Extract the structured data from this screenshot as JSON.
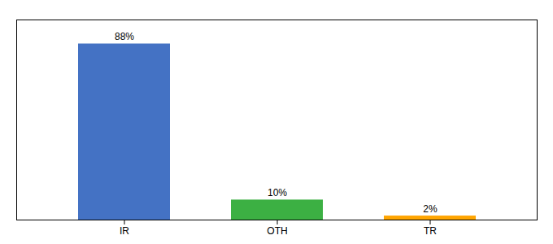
{
  "chart_data": {
    "type": "bar",
    "categories": [
      "IR",
      "OTH",
      "TR"
    ],
    "values": [
      88,
      10,
      2
    ],
    "value_labels": [
      "88%",
      "10%",
      "2%"
    ],
    "colors": [
      "#4472C4",
      "#3CB043",
      "#FFA500"
    ],
    "ylim": [
      0,
      100
    ],
    "grid": false,
    "data_labels": true,
    "tick_labels": "x"
  }
}
